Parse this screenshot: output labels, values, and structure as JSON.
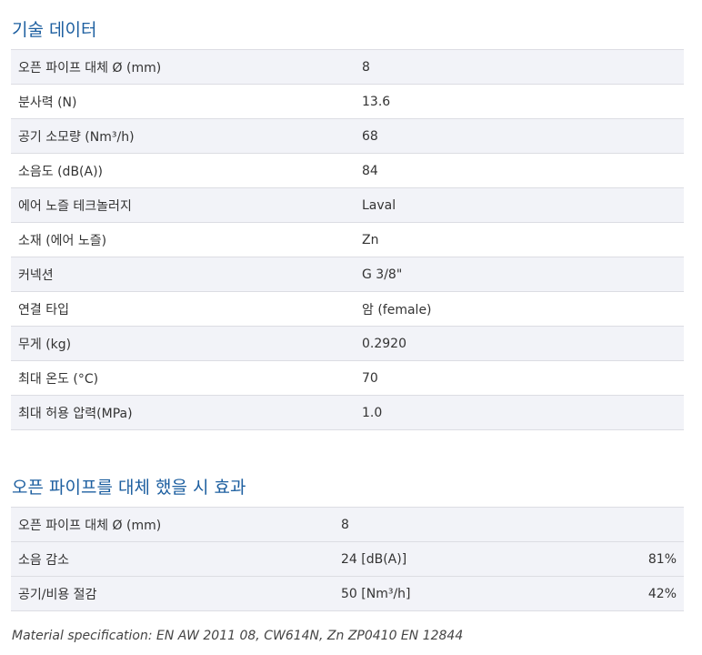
{
  "tech": {
    "title": "기술 데이터",
    "rows": [
      {
        "label": "오픈 파이프 대체 Ø (mm)",
        "value": "8"
      },
      {
        "label": "분사력 (N)",
        "value": "13.6"
      },
      {
        "label": "공기 소모량 (Nm³/h)",
        "value": "68"
      },
      {
        "label": "소음도 (dB(A))",
        "value": "84"
      },
      {
        "label": "에어 노즐 테크놀러지",
        "value": "Laval"
      },
      {
        "label": "소재 (에어 노즐)",
        "value": "Zn"
      },
      {
        "label": "커넥션",
        "value": "G 3/8\""
      },
      {
        "label": "연결 타입",
        "value": "암 (female)"
      },
      {
        "label": "무게 (kg)",
        "value": "0.2920"
      },
      {
        "label": "최대 온도 (°C)",
        "value": "70"
      },
      {
        "label": "최대 허용 압력(MPa)",
        "value": "1.0"
      }
    ]
  },
  "effect": {
    "title": "오픈 파이프를 대체 했을 시 효과",
    "rows": [
      {
        "label": "오픈 파이프 대체 Ø (mm)",
        "value": "8",
        "pct": ""
      },
      {
        "label": "소음 감소",
        "value": "24 [dB(A)]",
        "pct": "81%"
      },
      {
        "label": "공기/비용 절감",
        "value": "50 [Nm³/h]",
        "pct": "42%"
      }
    ]
  },
  "footnote": "Material specification: EN AW 2011 08, CW614N, Zn ZP0410 EN 12844"
}
